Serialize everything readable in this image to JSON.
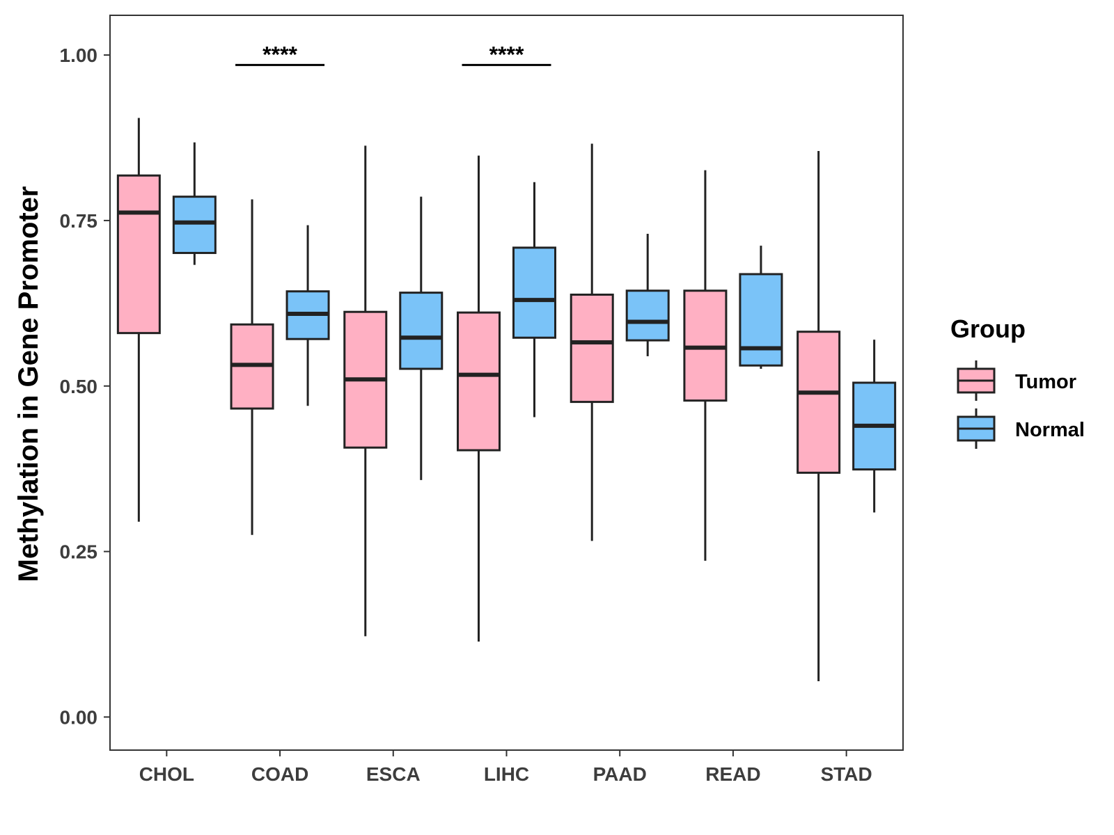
{
  "chart_data": {
    "type": "boxplot",
    "title": "",
    "xlabel": "",
    "ylabel": "Methylation in Gene Promoter",
    "ylim": [
      -0.05,
      1.06
    ],
    "yticks": [
      "0.00",
      "0.25",
      "0.50",
      "0.75",
      "1.00"
    ],
    "ytick_values": [
      0,
      0.25,
      0.5,
      0.75,
      1.0
    ],
    "categories": [
      "CHOL",
      "COAD",
      "ESCA",
      "LIHC",
      "PAAD",
      "READ",
      "STAD"
    ],
    "series": [
      {
        "name": "Tumor",
        "color": "#FFB0C3",
        "boxes": [
          {
            "min": 0.295,
            "q1": 0.58,
            "median": 0.762,
            "q3": 0.818,
            "max": 0.905
          },
          {
            "min": 0.275,
            "q1": 0.466,
            "median": 0.532,
            "q3": 0.593,
            "max": 0.782
          },
          {
            "min": 0.122,
            "q1": 0.407,
            "median": 0.51,
            "q3": 0.612,
            "max": 0.863
          },
          {
            "min": 0.114,
            "q1": 0.403,
            "median": 0.517,
            "q3": 0.611,
            "max": 0.848
          },
          {
            "min": 0.266,
            "q1": 0.476,
            "median": 0.566,
            "q3": 0.638,
            "max": 0.866
          },
          {
            "min": 0.236,
            "q1": 0.478,
            "median": 0.558,
            "q3": 0.644,
            "max": 0.826
          },
          {
            "min": 0.054,
            "q1": 0.369,
            "median": 0.49,
            "q3": 0.582,
            "max": 0.855
          }
        ]
      },
      {
        "name": "Normal",
        "color": "#7AC3F8",
        "boxes": [
          {
            "min": 0.683,
            "q1": 0.701,
            "median": 0.747,
            "q3": 0.786,
            "max": 0.868
          },
          {
            "min": 0.47,
            "q1": 0.571,
            "median": 0.609,
            "q3": 0.643,
            "max": 0.743
          },
          {
            "min": 0.358,
            "q1": 0.526,
            "median": 0.573,
            "q3": 0.641,
            "max": 0.786
          },
          {
            "min": 0.453,
            "q1": 0.573,
            "median": 0.63,
            "q3": 0.709,
            "max": 0.808
          },
          {
            "min": 0.545,
            "q1": 0.569,
            "median": 0.597,
            "q3": 0.644,
            "max": 0.73
          },
          {
            "min": 0.526,
            "q1": 0.531,
            "median": 0.557,
            "q3": 0.669,
            "max": 0.712
          },
          {
            "min": 0.309,
            "q1": 0.374,
            "median": 0.44,
            "q3": 0.505,
            "max": 0.57
          }
        ]
      }
    ],
    "significance": [
      {
        "category": "COAD",
        "label": "****",
        "y": 0.985
      },
      {
        "category": "LIHC",
        "label": "****",
        "y": 0.985
      }
    ],
    "legend": {
      "title": "Group",
      "position": "right"
    },
    "grid": false
  }
}
